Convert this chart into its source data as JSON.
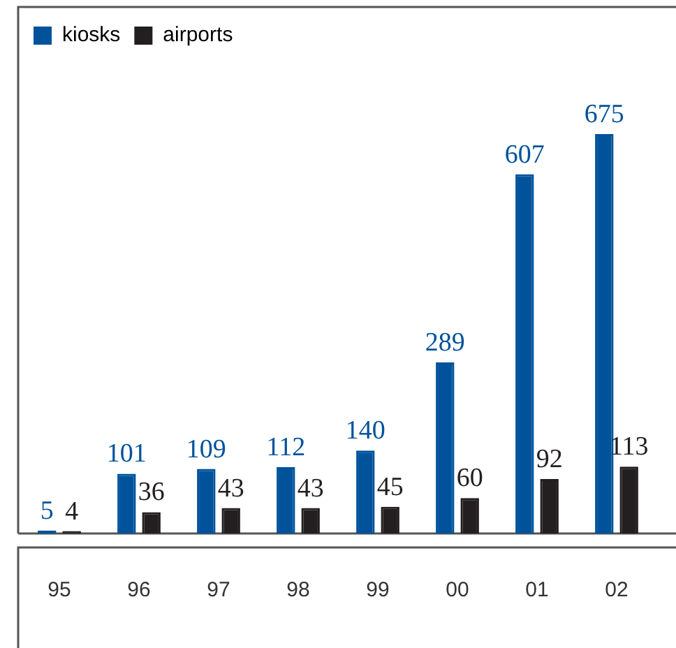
{
  "chart_data": {
    "type": "bar",
    "categories": [
      "95",
      "96",
      "97",
      "98",
      "99",
      "00",
      "01",
      "02"
    ],
    "series": [
      {
        "name": "kiosks",
        "color": "#00529b",
        "values": [
          5,
          101,
          109,
          112,
          140,
          289,
          607,
          675
        ]
      },
      {
        "name": "airports",
        "color": "#231f20",
        "values": [
          4,
          36,
          43,
          43,
          45,
          60,
          92,
          113
        ]
      }
    ],
    "tick_labels": "x",
    "data_labels": true,
    "legend": "top left"
  }
}
